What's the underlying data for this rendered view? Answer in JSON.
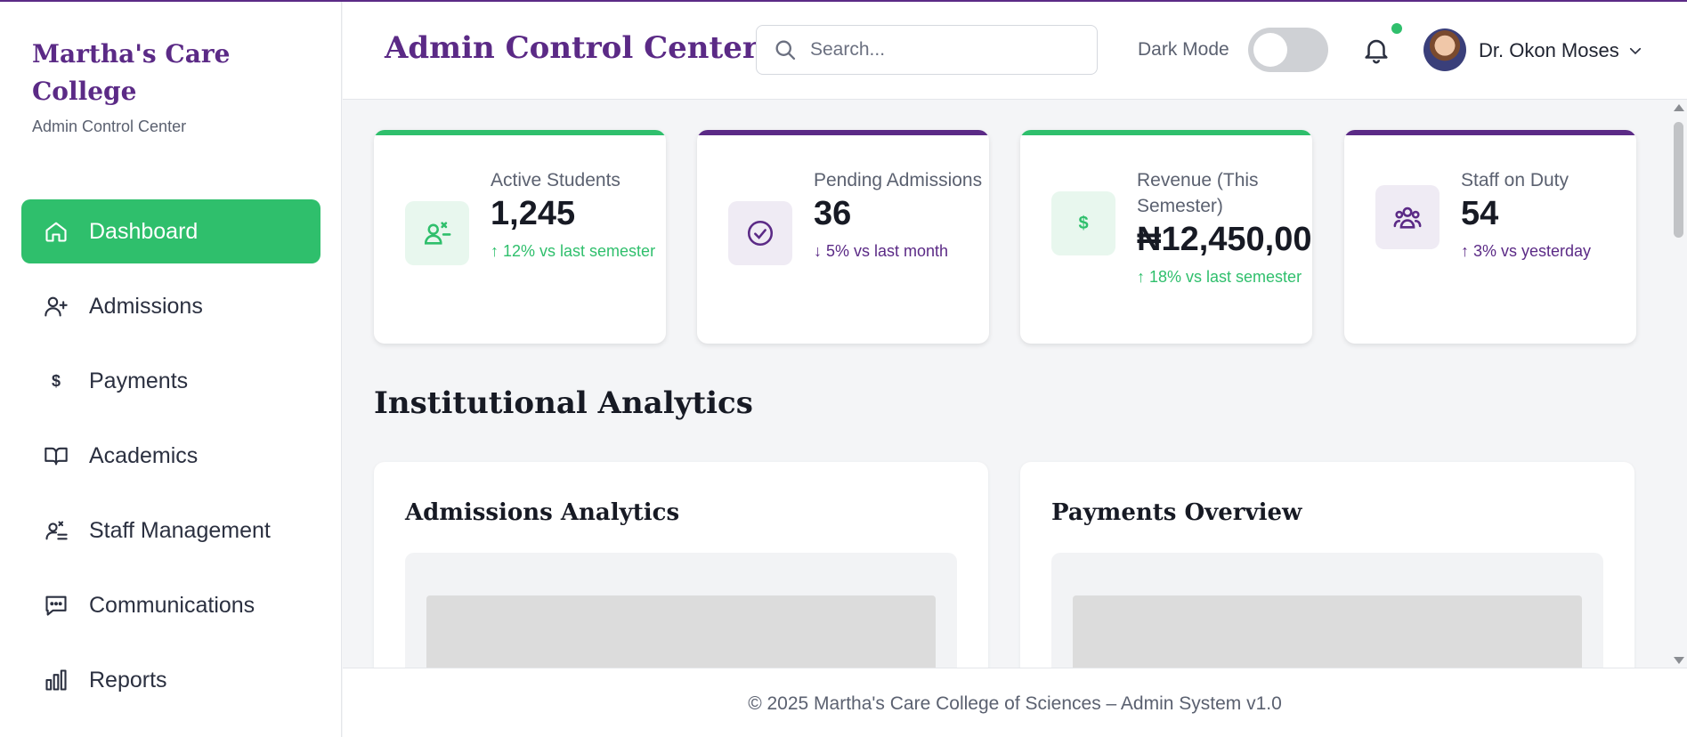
{
  "brand": {
    "title": "Martha's Care College",
    "subtitle": "Admin Control Center"
  },
  "sidebar": {
    "items": [
      {
        "label": "Dashboard",
        "icon": "home-icon",
        "active": true
      },
      {
        "label": "Admissions",
        "icon": "user-plus-icon"
      },
      {
        "label": "Payments",
        "icon": "dollar-icon"
      },
      {
        "label": "Academics",
        "icon": "book-icon"
      },
      {
        "label": "Staff Management",
        "icon": "staff-icon"
      },
      {
        "label": "Communications",
        "icon": "chat-icon"
      },
      {
        "label": "Reports",
        "icon": "bar-chart-icon"
      }
    ]
  },
  "header": {
    "title": "Admin Control Center",
    "search_placeholder": "Search...",
    "dark_mode_label": "Dark Mode",
    "user_name": "Dr. Okon Moses"
  },
  "stats": [
    {
      "label": "Active Students",
      "value": "1,245",
      "change": "↑ 12% vs last semester",
      "accent": "#2fbf6c",
      "change_color": "#2fbf6c"
    },
    {
      "label": "Pending Admissions",
      "value": "36",
      "change": "↓ 5% vs last month",
      "accent": "#5b2a86",
      "change_color": "#5b2a86"
    },
    {
      "label": "Revenue (This Semester)",
      "value": "₦12,450,00",
      "change": "↑ 18% vs last semester",
      "accent": "#2fbf6c",
      "change_color": "#2fbf6c"
    },
    {
      "label": "Staff on Duty",
      "value": "54",
      "change": "↑ 3% vs yesterday",
      "accent": "#5b2a86",
      "change_color": "#5b2a86"
    }
  ],
  "analytics": {
    "section_title": "Institutional Analytics",
    "panels": [
      {
        "title": "Admissions Analytics"
      },
      {
        "title": "Payments Overview"
      }
    ]
  },
  "footer": {
    "text": "© 2025 Martha's Care College of Sciences – Admin System v1.0"
  },
  "colors": {
    "primary": "#5b2a86",
    "accent_green": "#2fbf6c"
  }
}
